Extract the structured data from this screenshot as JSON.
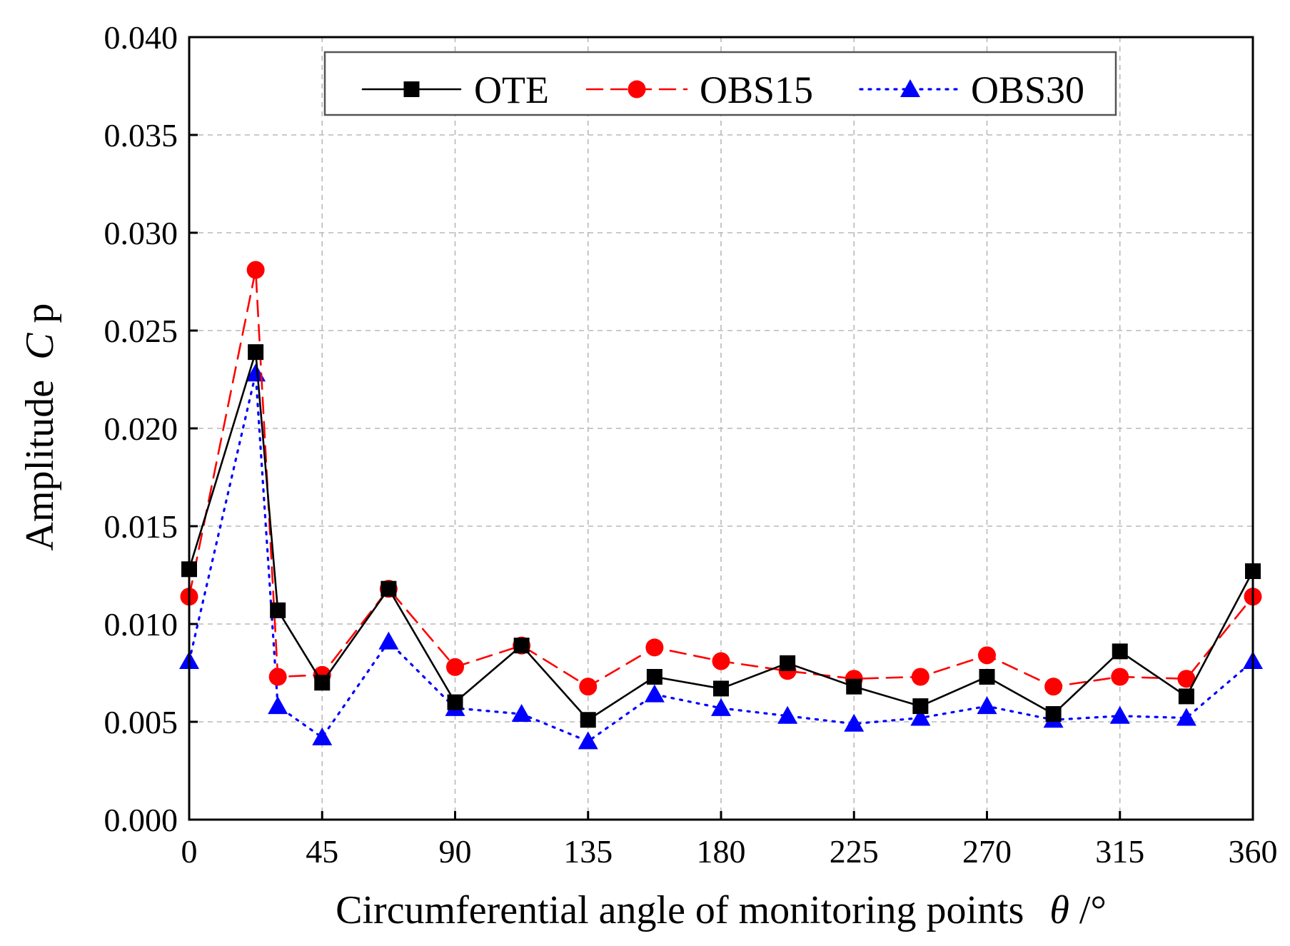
{
  "chart_data": {
    "type": "line",
    "title": "",
    "xlabel": "Circumferential angle of monitoring points",
    "xlabel_symbol": "θ",
    "xlabel_unit": "/°",
    "ylabel": "Amplitude",
    "ylabel_symbol": "C",
    "ylabel_subscript": "p",
    "xlim": [
      0,
      360
    ],
    "ylim": [
      0.0,
      0.04
    ],
    "xticks": [
      0,
      45,
      90,
      135,
      180,
      225,
      270,
      315,
      360
    ],
    "yticks": [
      "0.000",
      "0.005",
      "0.010",
      "0.015",
      "0.020",
      "0.025",
      "0.030",
      "0.035",
      "0.040"
    ],
    "grid": true,
    "legend_position": "top-center",
    "x": [
      0,
      22.5,
      30,
      45,
      67.5,
      90,
      112.5,
      135,
      157.5,
      180,
      202.5,
      225,
      247.5,
      270,
      292.5,
      315,
      337.5,
      360
    ],
    "series": [
      {
        "name": "OTE",
        "color": "#000000",
        "marker": "square",
        "line_style": "solid",
        "values": [
          0.0128,
          0.0239,
          0.0107,
          0.007,
          0.0118,
          0.006,
          0.0089,
          0.0051,
          0.0073,
          0.0067,
          0.008,
          0.0068,
          0.0058,
          0.0073,
          0.0054,
          0.0086,
          0.0063,
          0.0127
        ]
      },
      {
        "name": "OBS15",
        "color": "#ff0000",
        "marker": "circle",
        "line_style": "dashed",
        "values": [
          0.0114,
          0.0281,
          0.0073,
          0.0074,
          0.0118,
          0.0078,
          0.0089,
          0.0068,
          0.0088,
          0.0081,
          0.0076,
          0.0072,
          0.0073,
          0.0084,
          0.0068,
          0.0073,
          0.0072,
          0.0114
        ]
      },
      {
        "name": "OBS30",
        "color": "#0000ff",
        "marker": "triangle",
        "line_style": "dotted",
        "values": [
          0.0081,
          0.0228,
          0.0058,
          0.0042,
          0.0091,
          0.0057,
          0.0054,
          0.004,
          0.0064,
          0.0057,
          0.0053,
          0.0049,
          0.0052,
          0.0058,
          0.0051,
          0.0053,
          0.0052,
          0.0081
        ]
      }
    ]
  }
}
